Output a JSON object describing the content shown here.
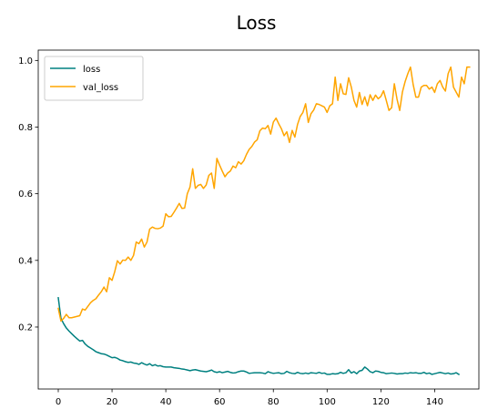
{
  "chart_data": {
    "type": "line",
    "title": "Loss",
    "xlabel": "",
    "ylabel": "",
    "xlim": [
      -7.45,
      156.45
    ],
    "ylim": [
      0.014,
      1.031
    ],
    "x_ticks": [
      0,
      20,
      40,
      60,
      80,
      100,
      120,
      140
    ],
    "y_ticks": [
      0.2,
      0.4,
      0.6,
      0.8,
      1.0
    ],
    "y_tick_labels": [
      "0.2",
      "0.4",
      "0.6",
      "0.8",
      "1.0"
    ],
    "grid": false,
    "legend_position": "upper-left",
    "series": [
      {
        "name": "loss",
        "color": "#008080",
        "values": [
          0.288,
          0.226,
          0.21,
          0.197,
          0.188,
          0.18,
          0.172,
          0.165,
          0.158,
          0.16,
          0.149,
          0.142,
          0.137,
          0.132,
          0.126,
          0.123,
          0.12,
          0.119,
          0.116,
          0.112,
          0.108,
          0.109,
          0.106,
          0.101,
          0.099,
          0.096,
          0.094,
          0.095,
          0.092,
          0.091,
          0.088,
          0.093,
          0.089,
          0.086,
          0.09,
          0.084,
          0.087,
          0.083,
          0.084,
          0.081,
          0.08,
          0.08,
          0.08,
          0.078,
          0.077,
          0.076,
          0.074,
          0.073,
          0.071,
          0.069,
          0.071,
          0.072,
          0.07,
          0.068,
          0.067,
          0.066,
          0.068,
          0.071,
          0.066,
          0.064,
          0.066,
          0.063,
          0.065,
          0.067,
          0.064,
          0.062,
          0.063,
          0.066,
          0.068,
          0.068,
          0.065,
          0.061,
          0.062,
          0.063,
          0.063,
          0.063,
          0.062,
          0.06,
          0.066,
          0.063,
          0.061,
          0.062,
          0.063,
          0.06,
          0.061,
          0.067,
          0.063,
          0.061,
          0.06,
          0.064,
          0.061,
          0.06,
          0.062,
          0.06,
          0.063,
          0.062,
          0.061,
          0.064,
          0.061,
          0.062,
          0.058,
          0.058,
          0.06,
          0.059,
          0.06,
          0.064,
          0.061,
          0.063,
          0.072,
          0.062,
          0.066,
          0.06,
          0.068,
          0.07,
          0.08,
          0.074,
          0.066,
          0.063,
          0.068,
          0.067,
          0.064,
          0.063,
          0.06,
          0.061,
          0.062,
          0.061,
          0.059,
          0.06,
          0.06,
          0.062,
          0.061,
          0.063,
          0.062,
          0.063,
          0.061,
          0.061,
          0.064,
          0.06,
          0.062,
          0.058,
          0.06,
          0.062,
          0.064,
          0.062,
          0.06,
          0.062,
          0.059,
          0.06,
          0.063,
          0.058
        ]
      },
      {
        "name": "val_loss",
        "color": "#FFA500",
        "values": [
          0.256,
          0.218,
          0.226,
          0.238,
          0.228,
          0.228,
          0.23,
          0.232,
          0.234,
          0.254,
          0.251,
          0.262,
          0.273,
          0.28,
          0.285,
          0.296,
          0.306,
          0.32,
          0.306,
          0.348,
          0.34,
          0.366,
          0.399,
          0.389,
          0.401,
          0.4,
          0.41,
          0.4,
          0.415,
          0.455,
          0.45,
          0.464,
          0.44,
          0.455,
          0.494,
          0.5,
          0.496,
          0.495,
          0.497,
          0.503,
          0.54,
          0.531,
          0.532,
          0.544,
          0.557,
          0.571,
          0.556,
          0.557,
          0.6,
          0.62,
          0.675,
          0.616,
          0.625,
          0.628,
          0.616,
          0.626,
          0.655,
          0.662,
          0.616,
          0.706,
          0.686,
          0.668,
          0.651,
          0.662,
          0.668,
          0.683,
          0.678,
          0.696,
          0.689,
          0.699,
          0.718,
          0.733,
          0.742,
          0.755,
          0.762,
          0.789,
          0.797,
          0.795,
          0.805,
          0.779,
          0.815,
          0.827,
          0.81,
          0.795,
          0.774,
          0.786,
          0.754,
          0.79,
          0.77,
          0.808,
          0.832,
          0.844,
          0.87,
          0.814,
          0.84,
          0.851,
          0.87,
          0.868,
          0.864,
          0.86,
          0.844,
          0.864,
          0.87,
          0.95,
          0.88,
          0.93,
          0.9,
          0.898,
          0.948,
          0.92,
          0.88,
          0.86,
          0.904,
          0.868,
          0.891,
          0.864,
          0.897,
          0.88,
          0.896,
          0.885,
          0.892,
          0.909,
          0.88,
          0.85,
          0.858,
          0.93,
          0.884,
          0.85,
          0.905,
          0.936,
          0.96,
          0.98,
          0.928,
          0.89,
          0.89,
          0.92,
          0.925,
          0.925,
          0.914,
          0.92,
          0.904,
          0.93,
          0.94,
          0.92,
          0.908,
          0.96,
          0.98,
          0.92,
          0.905,
          0.89,
          0.95,
          0.93,
          0.98,
          0.98
        ]
      }
    ]
  }
}
